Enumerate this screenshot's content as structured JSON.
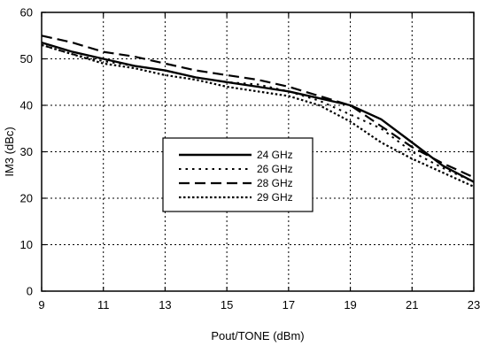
{
  "chart_data": {
    "type": "line",
    "title": "",
    "xlabel": "Pout/TONE (dBm)",
    "ylabel": "IM3 (dBc)",
    "xlim": [
      9,
      23
    ],
    "ylim": [
      0,
      60
    ],
    "xticks": [
      9,
      11,
      13,
      15,
      17,
      19,
      21,
      23
    ],
    "yticks": [
      0,
      10,
      20,
      30,
      40,
      50,
      60
    ],
    "grid": true,
    "legend_position": "center-left",
    "series": [
      {
        "name": "24 GHz",
        "style": "solid",
        "color": "#000000",
        "x": [
          9,
          10,
          11,
          12,
          13,
          14,
          15,
          16,
          17,
          18,
          19,
          20,
          21,
          22,
          23
        ],
        "y": [
          53.5,
          51.5,
          50.0,
          48.5,
          47.5,
          46.0,
          45.0,
          44.0,
          43.0,
          41.5,
          40.0,
          37.0,
          32.0,
          27.0,
          23.5
        ]
      },
      {
        "name": "26 GHz",
        "style": "dotted",
        "color": "#000000",
        "x": [
          9,
          10,
          11,
          12,
          13,
          14,
          15,
          16,
          17,
          18,
          19,
          20,
          21,
          22,
          23
        ],
        "y": [
          53.0,
          51.0,
          49.5,
          48.5,
          47.5,
          46.0,
          45.0,
          44.5,
          43.0,
          41.0,
          38.0,
          35.0,
          30.0,
          26.5,
          23.5
        ]
      },
      {
        "name": "28 GHz",
        "style": "dashed",
        "color": "#000000",
        "x": [
          9,
          10,
          11,
          12,
          13,
          14,
          15,
          16,
          17,
          18,
          19,
          20,
          21,
          22,
          23
        ],
        "y": [
          55.0,
          53.5,
          51.5,
          50.5,
          49.0,
          47.5,
          46.5,
          45.5,
          44.0,
          42.0,
          40.0,
          35.5,
          31.0,
          27.5,
          24.5
        ]
      },
      {
        "name": "29 GHz",
        "style": "densely-dotted",
        "color": "#000000",
        "x": [
          9,
          10,
          11,
          12,
          13,
          14,
          15,
          16,
          17,
          18,
          19,
          20,
          21,
          22,
          23
        ],
        "y": [
          53.0,
          51.0,
          49.0,
          48.0,
          46.5,
          45.5,
          44.0,
          43.0,
          42.0,
          40.0,
          36.5,
          32.0,
          28.5,
          25.5,
          22.5
        ]
      }
    ]
  }
}
